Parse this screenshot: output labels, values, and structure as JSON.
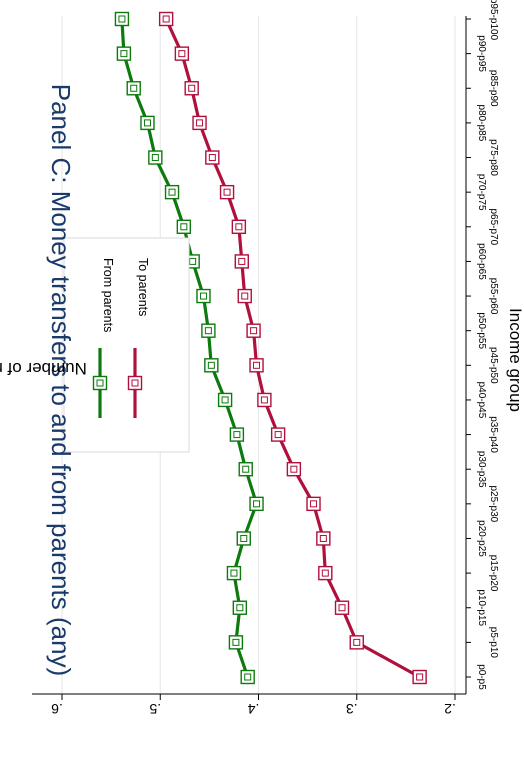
{
  "chart_data": {
    "type": "line",
    "title": "Panel C: Money transfers to and from parents (any)",
    "xlabel": "Income group",
    "ylabel": "Number of months",
    "categories": [
      "p0-p5",
      "p5-p10",
      "p10-p15",
      "p15-p20",
      "p20-p25",
      "p25-p30",
      "p30-p35",
      "p35-p40",
      "p40-p45",
      "p45-p50",
      "p50-p55",
      "p55-p60",
      "p60-p65",
      "p65-p70",
      "p70-p75",
      "p75-p80",
      "p80-p85",
      "p85-p90",
      "p90-p95",
      "p95-p100"
    ],
    "ylim": [
      0.2,
      0.6
    ],
    "yticks": [
      0.2,
      0.3,
      0.4,
      0.5,
      0.6
    ],
    "ytick_labels": [
      ".2",
      ".3",
      ".4",
      ".5",
      ".6"
    ],
    "series": [
      {
        "name": "From parents",
        "color": "#0d7a0d",
        "marker": "hollow-square",
        "values": [
          0.411,
          0.423,
          0.419,
          0.425,
          0.415,
          0.402,
          0.413,
          0.422,
          0.434,
          0.448,
          0.451,
          0.456,
          0.467,
          0.476,
          0.488,
          0.505,
          0.513,
          0.527,
          0.537,
          0.539
        ]
      },
      {
        "name": "To parents",
        "color": "#b0103c",
        "marker": "hollow-square",
        "values": [
          0.236,
          0.3,
          0.315,
          0.332,
          0.334,
          0.344,
          0.364,
          0.38,
          0.394,
          0.402,
          0.405,
          0.414,
          0.417,
          0.42,
          0.432,
          0.447,
          0.46,
          0.468,
          0.478,
          0.494
        ]
      }
    ],
    "grid": true,
    "legend_position": "top-left"
  }
}
